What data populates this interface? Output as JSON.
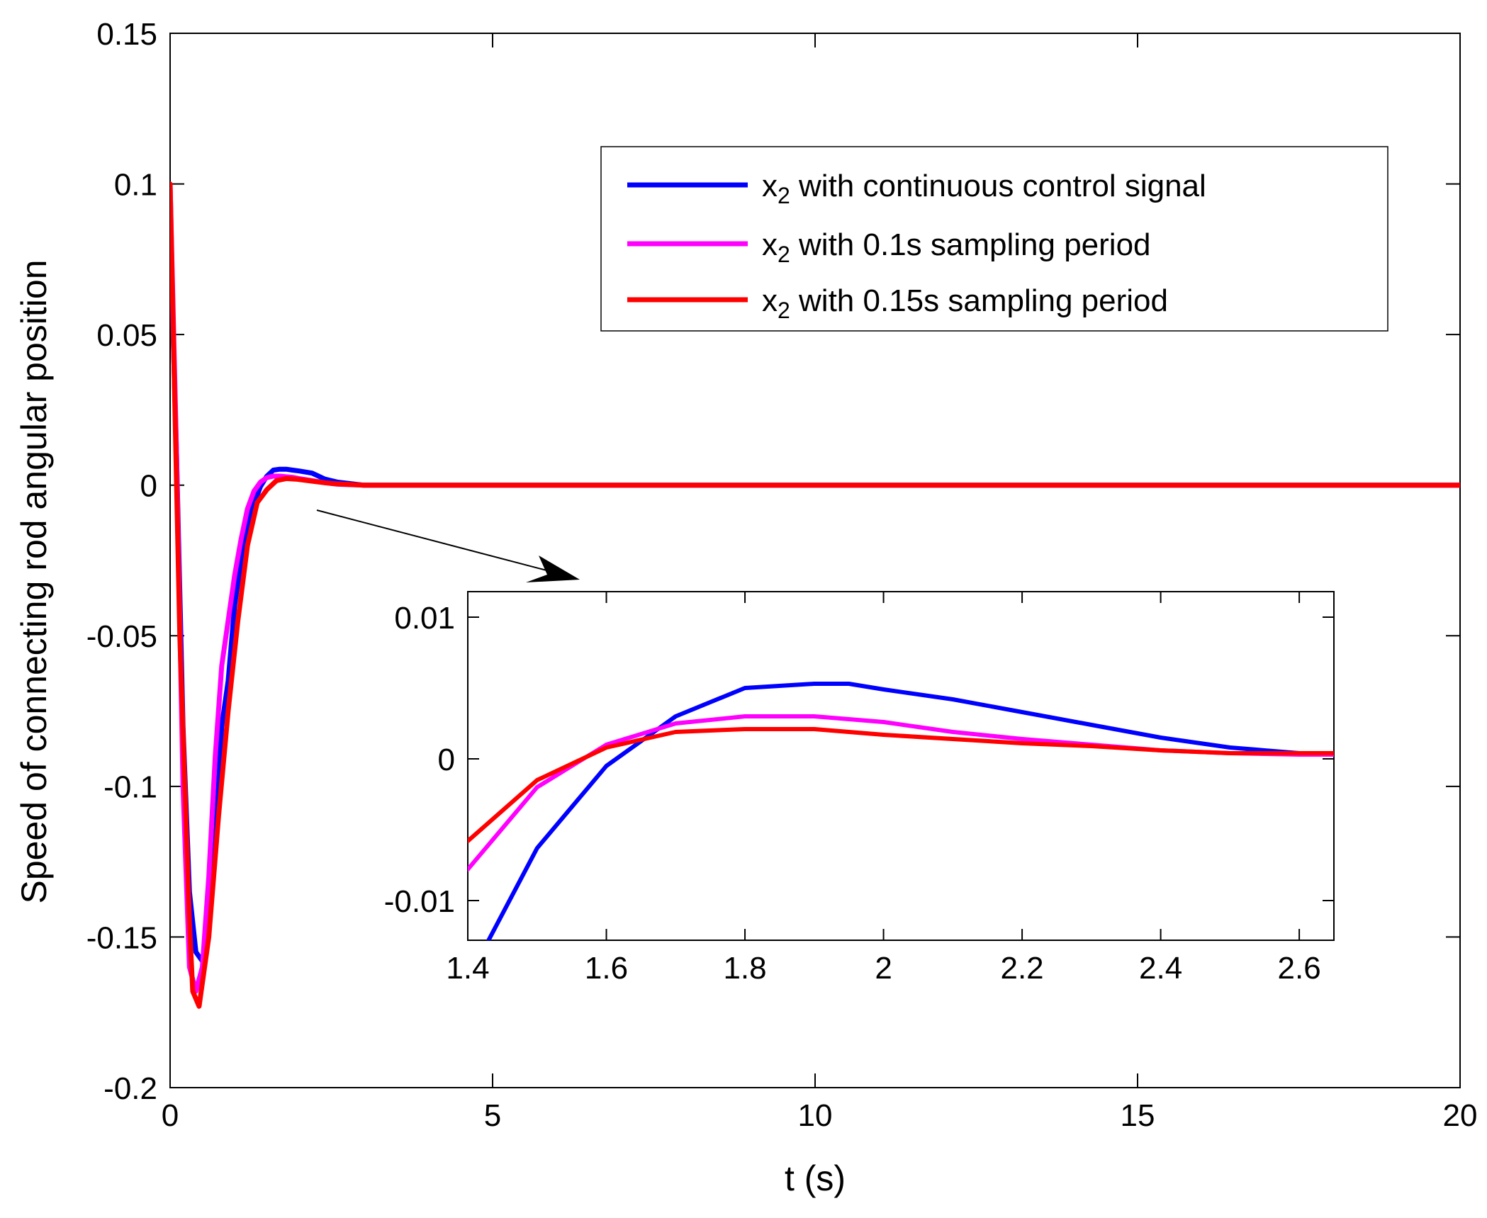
{
  "chart_data": [
    {
      "id": "main",
      "type": "line",
      "title": "",
      "xlabel": "t (s)",
      "ylabel": "Speed of connecting rod angular position",
      "xlim": [
        0,
        20
      ],
      "ylim": [
        -0.2,
        0.15
      ],
      "xticks": [
        0,
        5,
        10,
        15,
        20
      ],
      "xtick_labels": [
        "0",
        "5",
        "10",
        "15",
        "20"
      ],
      "yticks": [
        -0.2,
        -0.15,
        -0.1,
        -0.05,
        0,
        0.05,
        0.1,
        0.15
      ],
      "ytick_labels": [
        "-0.2",
        "-0.15",
        "-0.1",
        "-0.05",
        "0",
        "0.05",
        "0.1",
        "0.15"
      ],
      "grid": false,
      "legend_position": "top-right",
      "series": [
        {
          "name": "x₂ with continuous control signal",
          "legend_main": "x",
          "legend_sub": "2",
          "legend_rest": " with continuous control signal",
          "color": "#0000ff",
          "x": [
            0,
            0.1,
            0.2,
            0.3,
            0.4,
            0.5,
            0.55,
            0.6,
            0.7,
            0.8,
            0.9,
            1.0,
            1.1,
            1.2,
            1.3,
            1.4,
            1.5,
            1.6,
            1.7,
            1.8,
            1.9,
            2.0,
            2.2,
            2.4,
            2.6,
            3,
            5,
            10,
            15,
            20
          ],
          "y": [
            0.085,
            0.01,
            -0.08,
            -0.135,
            -0.155,
            -0.158,
            -0.155,
            -0.148,
            -0.12,
            -0.08,
            -0.065,
            -0.04,
            -0.025,
            -0.013,
            -0.0063,
            -0.0005,
            0.003,
            0.005,
            0.0053,
            0.0053,
            0.005,
            0.0047,
            0.004,
            0.002,
            0.001,
            0,
            0,
            0,
            0,
            0
          ]
        },
        {
          "name": "x₂ with 0.1s sampling period",
          "legend_main": "x",
          "legend_sub": "2",
          "legend_rest": " with 0.1s sampling period",
          "color": "#ff00ff",
          "x": [
            0,
            0.1,
            0.2,
            0.3,
            0.4,
            0.5,
            0.6,
            0.7,
            0.8,
            0.9,
            1.0,
            1.1,
            1.2,
            1.3,
            1.4,
            1.5,
            1.6,
            1.7,
            1.8,
            1.9,
            2.0,
            2.2,
            2.4,
            2.6,
            3,
            5,
            10,
            15,
            20
          ],
          "y": [
            0.1,
            0.01,
            -0.1,
            -0.16,
            -0.168,
            -0.16,
            -0.13,
            -0.09,
            -0.06,
            -0.045,
            -0.03,
            -0.018,
            -0.0078,
            -0.002,
            0.001,
            0.0025,
            0.003,
            0.003,
            0.0028,
            0.0026,
            0.0022,
            0.0015,
            0.0008,
            0.0003,
            0,
            0,
            0,
            0,
            0
          ]
        },
        {
          "name": "x₂ with 0.15s sampling period",
          "legend_main": "x",
          "legend_sub": "2",
          "legend_rest": " with 0.15s sampling period",
          "color": "#ff0000",
          "x": [
            0,
            0.15,
            0.3,
            0.35,
            0.45,
            0.6,
            0.75,
            0.9,
            1.05,
            1.2,
            1.35,
            1.5,
            1.65,
            1.8,
            1.95,
            2.1,
            2.25,
            2.4,
            2.55,
            2.7,
            3,
            5,
            10,
            15,
            20
          ],
          "y": [
            0.1,
            -0.05,
            -0.145,
            -0.168,
            -0.173,
            -0.15,
            -0.11,
            -0.075,
            -0.045,
            -0.02,
            -0.0058,
            -0.0015,
            0.0015,
            0.0022,
            0.002,
            0.0016,
            0.0012,
            0.0008,
            0.0005,
            0.0003,
            0,
            0,
            0,
            0,
            0
          ]
        }
      ]
    },
    {
      "id": "inset",
      "type": "line",
      "title": "",
      "xlabel": "",
      "ylabel": "",
      "xlim": [
        1.4,
        2.65
      ],
      "ylim": [
        -0.0128,
        0.0118
      ],
      "xticks": [
        1.4,
        1.6,
        1.8,
        2.0,
        2.2,
        2.4,
        2.6
      ],
      "xtick_labels": [
        "1.4",
        "1.6",
        "1.8",
        "2",
        "2.2",
        "2.4",
        "2.6"
      ],
      "yticks": [
        -0.01,
        0,
        0.01
      ],
      "ytick_labels": [
        "-0.01",
        "0",
        "0.01"
      ],
      "grid": false,
      "annotation": "arrow from main curve near t = 2 s pointing to inset",
      "series": [
        {
          "name": "x₂ with continuous control signal",
          "color": "#0000ff",
          "x": [
            1.43,
            1.5,
            1.6,
            1.7,
            1.8,
            1.9,
            1.95,
            2.0,
            2.1,
            2.2,
            2.3,
            2.4,
            2.5,
            2.6,
            2.65
          ],
          "y": [
            -0.0128,
            -0.0063,
            -0.0005,
            0.003,
            0.005,
            0.0053,
            0.0053,
            0.0049,
            0.0042,
            0.0033,
            0.0024,
            0.0015,
            0.0008,
            0.0004,
            0.0003
          ]
        },
        {
          "name": "x₂ with 0.1s sampling period",
          "color": "#ff00ff",
          "x": [
            1.4,
            1.5,
            1.6,
            1.7,
            1.8,
            1.9,
            2.0,
            2.1,
            2.2,
            2.3,
            2.4,
            2.5,
            2.6,
            2.65
          ],
          "y": [
            -0.0078,
            -0.002,
            0.001,
            0.0025,
            0.003,
            0.003,
            0.0026,
            0.0019,
            0.0014,
            0.001,
            0.0006,
            0.0004,
            0.0003,
            0.0003
          ]
        },
        {
          "name": "x₂ with 0.15s sampling period",
          "color": "#ff0000",
          "x": [
            1.4,
            1.5,
            1.6,
            1.7,
            1.8,
            1.9,
            2.0,
            2.1,
            2.2,
            2.3,
            2.4,
            2.5,
            2.6,
            2.65
          ],
          "y": [
            -0.0058,
            -0.0015,
            0.0008,
            0.0019,
            0.0021,
            0.0021,
            0.0017,
            0.0014,
            0.0011,
            0.0009,
            0.0006,
            0.0004,
            0.0004,
            0.0004
          ]
        }
      ]
    }
  ]
}
